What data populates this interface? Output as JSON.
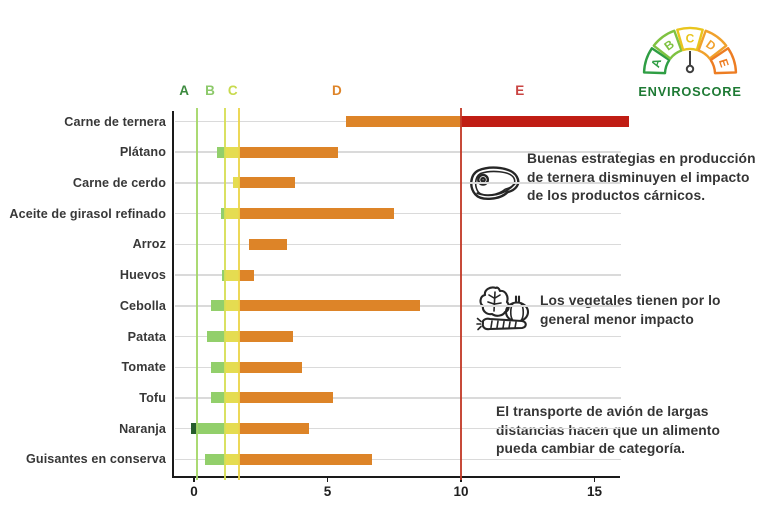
{
  "page": {
    "background": "#ffffff"
  },
  "logo": {
    "label": "ENVIROSCORE",
    "letters": [
      "A",
      "B",
      "C",
      "D",
      "E"
    ],
    "segment_colors": [
      "#2f9e44",
      "#7fc241",
      "#e9c51e",
      "#f0a12c",
      "#ed7d23"
    ],
    "text_color": "#1e7a34",
    "needle_color": "#3f3f3f"
  },
  "annotations": [
    {
      "icon": "steak-icon",
      "text": "Buenas estrategias en producción\nde ternera disminuyen el impacto\nde los productos cárnicos."
    },
    {
      "icon": "vegetables-icon",
      "text": "Los vegetales tienen por lo\ngeneral menor impacto"
    },
    {
      "icon": null,
      "text": "El transporte de avión de largas\ndistancias hacen que un alimento\npueda cambiar de categoría."
    }
  ],
  "chart_data": {
    "type": "bar",
    "orientation": "horizontal",
    "xlabel": "",
    "ylabel": "",
    "x_ticks": [
      0,
      5,
      10,
      15
    ],
    "x_range": [
      -0.8,
      16.5
    ],
    "grid": true,
    "categories": [
      "Carne de ternera",
      "Plátano",
      "Carne de cerdo",
      "Aceite de girasol refinado",
      "Arroz",
      "Huevos",
      "Cebolla",
      "Patata",
      "Tomate",
      "Tofu",
      "Naranja",
      "Guisantes en conserva"
    ],
    "bars": [
      {
        "label": "Carne de ternera",
        "start": 5.7,
        "end": 16.3
      },
      {
        "label": "Plátano",
        "start": 0.85,
        "end": 5.4
      },
      {
        "label": "Carne de cerdo",
        "start": 1.45,
        "end": 3.8
      },
      {
        "label": "Aceite de girasol refinado",
        "start": 1.0,
        "end": 7.5
      },
      {
        "label": "Arroz",
        "start": 2.05,
        "end": 3.5
      },
      {
        "label": "Huevos",
        "start": 1.05,
        "end": 2.25
      },
      {
        "label": "Cebolla",
        "start": 0.65,
        "end": 8.45
      },
      {
        "label": "Patata",
        "start": 0.5,
        "end": 3.7
      },
      {
        "label": "Tomate",
        "start": 0.65,
        "end": 4.05
      },
      {
        "label": "Tofu",
        "start": 0.65,
        "end": 5.2
      },
      {
        "label": "Naranja",
        "start": -0.1,
        "end": 4.3
      },
      {
        "label": "Guisantes en conserva",
        "start": 0.4,
        "end": 6.65
      }
    ],
    "zones": {
      "letters": [
        "A",
        "B",
        "C",
        "D",
        "E"
      ],
      "boundaries": [
        0.12,
        1.15,
        1.7,
        10
      ],
      "colors": [
        "#275d2d",
        "#92cf6b",
        "#e5dc51",
        "#dd8428",
        "#c01d14"
      ]
    },
    "zone_lines": [
      {
        "x": 0.12,
        "color": "#a4d767"
      },
      {
        "x": 1.15,
        "color": "#d7de55"
      },
      {
        "x": 1.7,
        "color": "#ecd54a"
      },
      {
        "x": 10,
        "color": "#c23b28"
      }
    ],
    "category_axis_labels": [
      {
        "text": "A",
        "x": -0.37,
        "color": "#3c8a3e"
      },
      {
        "text": "B",
        "x": 0.6,
        "color": "#8cc96a"
      },
      {
        "text": "C",
        "x": 1.45,
        "color": "#c8da4d"
      },
      {
        "text": "D",
        "x": 5.35,
        "color": "#de8428"
      },
      {
        "text": "E",
        "x": 12.2,
        "color": "#c94341"
      }
    ]
  }
}
